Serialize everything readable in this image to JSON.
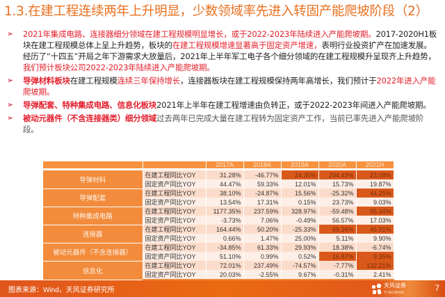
{
  "title": "1.3.在建工程连续两年上升明显，少数领域率先进入转固产能爬坡阶段（2）",
  "bullets": [
    {
      "segments": [
        {
          "text": "2021年集成电路、连接器细分领域在建工程规模明显增长，或于2022-2023年陆续进入产能爬坡期。",
          "style": "red"
        },
        {
          "text": "2017-2020H1板块在建工程规模总体上呈上升趋势，板块的",
          "style": "normal"
        },
        {
          "text": "在建工程规模增速显著高于固定资产增速，",
          "style": "red"
        },
        {
          "text": "表明行业投资扩产在加速发展。经历了“十四五”开局之年下游需求大放量后，2021年上半年军工电子各个细分领域的在建工程规模升呈现齐上升趋势，",
          "style": "normal"
        },
        {
          "text": "我们预计板块公司2022-2023年陆续进入产能爬坡期。",
          "style": "red"
        }
      ]
    },
    {
      "segments": [
        {
          "text": "导弹材料板块",
          "style": "red-bold"
        },
        {
          "text": "在建工程规模",
          "style": "normal"
        },
        {
          "text": "连续三年保持增长",
          "style": "red"
        },
        {
          "text": "，连接器板块在建工程规模保持两年高增长，我们预计于",
          "style": "normal"
        },
        {
          "text": "2022年进入产能爬坡期。",
          "style": "red"
        }
      ]
    },
    {
      "segments": [
        {
          "text": "导弹配套、特种集成电路、信息化板块",
          "style": "red-bold"
        },
        {
          "text": "2021年上半年在建工程增速由负转正，或于2022-2023年间进入产能爬坡期。",
          "style": "normal"
        }
      ]
    },
    {
      "segments": [
        {
          "text": "被动元器件（不含连接器类）细分领域",
          "style": "red-bold"
        },
        {
          "text": "过去两年已完成大量在建工程转为固定资产工作，当前已率先进入产能爬坡阶段。",
          "style": "gray"
        }
      ]
    }
  ],
  "table": {
    "headers": [
      "",
      "",
      "2017A",
      "2018A",
      "2019A",
      "2020A",
      "2021H"
    ],
    "groups": [
      {
        "category": "导弹材料",
        "rows": [
          {
            "metric": "在建工程同比YOY",
            "values": [
              "31.28%",
              "-46.77%",
              "24.35%",
              "294.43%",
              "23.08%"
            ],
            "highlight": [
              false,
              false,
              true,
              true,
              true
            ]
          },
          {
            "metric": "固定资产同比YOY",
            "values": [
              "44.47%",
              "59.33%",
              "12.01%",
              "15.73%",
              "19.87%"
            ],
            "highlight": [
              false,
              false,
              false,
              false,
              false
            ]
          }
        ]
      },
      {
        "category": "导弹配套",
        "rows": [
          {
            "metric": "在建工程同比YOY",
            "values": [
              "38.10%",
              "-24.87%",
              "15.56%",
              "-25.32%",
              "44.25%"
            ],
            "highlight": [
              false,
              false,
              false,
              false,
              true
            ]
          },
          {
            "metric": "固定资产同比YOY",
            "values": [
              "13.54%",
              "17.31%",
              "0.15%",
              "23.73%",
              "9.03%"
            ],
            "highlight": [
              false,
              false,
              false,
              false,
              false
            ]
          }
        ]
      },
      {
        "category": "特种集成电路",
        "rows": [
          {
            "metric": "在建工程同比YOY",
            "values": [
              "1177.35%",
              "237.59%",
              "328.97%",
              "-59.48%",
              "95.34%"
            ],
            "highlight": [
              false,
              false,
              false,
              false,
              true
            ]
          },
          {
            "metric": "固定资产同比YOY",
            "values": [
              "-3.73%",
              "7.06%",
              "-0.49%",
              "56.57%",
              "17.03%"
            ],
            "highlight": [
              false,
              false,
              false,
              false,
              false
            ]
          }
        ]
      },
      {
        "category": "连接器",
        "rows": [
          {
            "metric": "在建工程同比YOY",
            "values": [
              "164.44%",
              "50.20%",
              "-25.33%",
              "69.36%",
              "45.91%"
            ],
            "highlight": [
              false,
              false,
              false,
              true,
              true
            ]
          },
          {
            "metric": "固定资产同比YOY",
            "values": [
              "0.66%",
              "1.47%",
              "25.00%",
              "5.11%",
              "9.90%"
            ],
            "highlight": [
              false,
              false,
              false,
              false,
              false
            ]
          }
        ]
      },
      {
        "category": "被动元器件（不含连接器）",
        "rows": [
          {
            "metric": "在建工程同比YOY",
            "values": [
              "-34.85%",
              "61.33%",
              "29.93%",
              "18.38%",
              "-6.74%"
            ],
            "highlight": [
              false,
              false,
              false,
              false,
              false
            ]
          },
          {
            "metric": "固定资产同比YOY",
            "values": [
              "51.10%",
              "0.99%",
              "0.52%",
              "16.87%",
              "9.35%"
            ],
            "highlight": [
              false,
              false,
              false,
              true,
              true
            ]
          }
        ]
      },
      {
        "category": "信息化",
        "rows": [
          {
            "metric": "在建工程同比YOY",
            "values": [
              "72.01%",
              "237.49%",
              "-74.57%",
              "-7.77%",
              "132.21%"
            ],
            "highlight": [
              false,
              false,
              false,
              false,
              true
            ]
          },
          {
            "metric": "固定资产同比YOY",
            "values": [
              "20.03%",
              "-2.55%",
              "9.67%",
              "-0.31%",
              "2.41%"
            ],
            "highlight": [
              false,
              false,
              false,
              false,
              false
            ]
          }
        ]
      }
    ]
  },
  "footer": {
    "source": "图表来源：Wind，天风证券研究所",
    "brand": "天风证券",
    "brand_sub": "TF SECURITIES",
    "page": "7"
  },
  "colors": {
    "title": "#e8701e",
    "red_text": "#e3202d",
    "table_header": "#f7923f",
    "category_cell": "#f28c3c",
    "highlight_cell": "#d9591a",
    "footer": "#ec6a12"
  }
}
